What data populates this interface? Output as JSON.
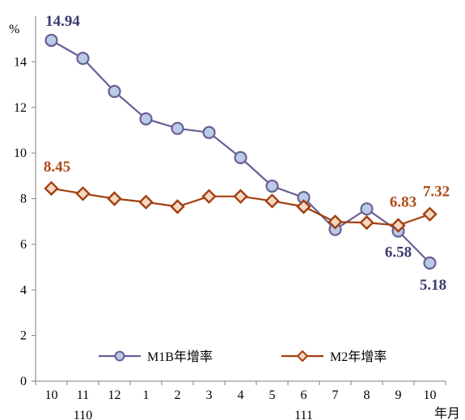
{
  "chart_data": {
    "type": "line",
    "title": "",
    "ylabel": "%",
    "xlabel": "年月",
    "ylim": [
      0,
      16
    ],
    "yticks": [
      "0",
      "2",
      "4",
      "6",
      "8",
      "10",
      "12",
      "14"
    ],
    "categories": [
      "10",
      "11",
      "12",
      "1",
      "2",
      "3",
      "4",
      "5",
      "6",
      "7",
      "8",
      "9",
      "10"
    ],
    "year_labels": [
      {
        "label": "110",
        "category_index": 1
      },
      {
        "label": "111",
        "category_index": 8
      }
    ],
    "series": [
      {
        "name": "M1B年增率",
        "color": "#6a5f96",
        "marker_fill": "#b9cbe6",
        "marker": "circle",
        "values": [
          14.94,
          14.15,
          12.7,
          11.5,
          11.08,
          10.9,
          9.8,
          8.55,
          8.05,
          6.65,
          7.55,
          6.58,
          5.18
        ],
        "labels": [
          {
            "index": 0,
            "text": "14.94"
          },
          {
            "index": 11,
            "text": "6.58"
          },
          {
            "index": 12,
            "text": "5.18"
          }
        ]
      },
      {
        "name": "M2年增率",
        "color": "#a23f10",
        "marker_fill": "#f5d8c2",
        "marker": "diamond",
        "values": [
          8.45,
          8.22,
          8.0,
          7.85,
          7.65,
          8.1,
          8.1,
          7.9,
          7.65,
          6.98,
          6.95,
          6.83,
          7.32
        ],
        "labels": [
          {
            "index": 0,
            "text": "8.45"
          },
          {
            "index": 11,
            "text": "6.83"
          },
          {
            "index": 12,
            "text": "7.32"
          }
        ]
      }
    ],
    "legend": "inside-bottom"
  }
}
